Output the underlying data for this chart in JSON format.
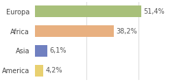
{
  "categories": [
    "Europa",
    "Africa",
    "Asia",
    "America"
  ],
  "values": [
    51.4,
    38.2,
    6.1,
    4.2
  ],
  "labels": [
    "51,4%",
    "38,2%",
    "6,1%",
    "4,2%"
  ],
  "bar_colors": [
    "#a8c07a",
    "#e8b080",
    "#7080c0",
    "#e8d070"
  ],
  "background_color": "#ffffff",
  "xlim": [
    0,
    75
  ],
  "bar_height": 0.6,
  "label_fontsize": 7,
  "tick_fontsize": 7,
  "grid_lines": [
    25,
    50
  ],
  "grid_color": "#dddddd"
}
